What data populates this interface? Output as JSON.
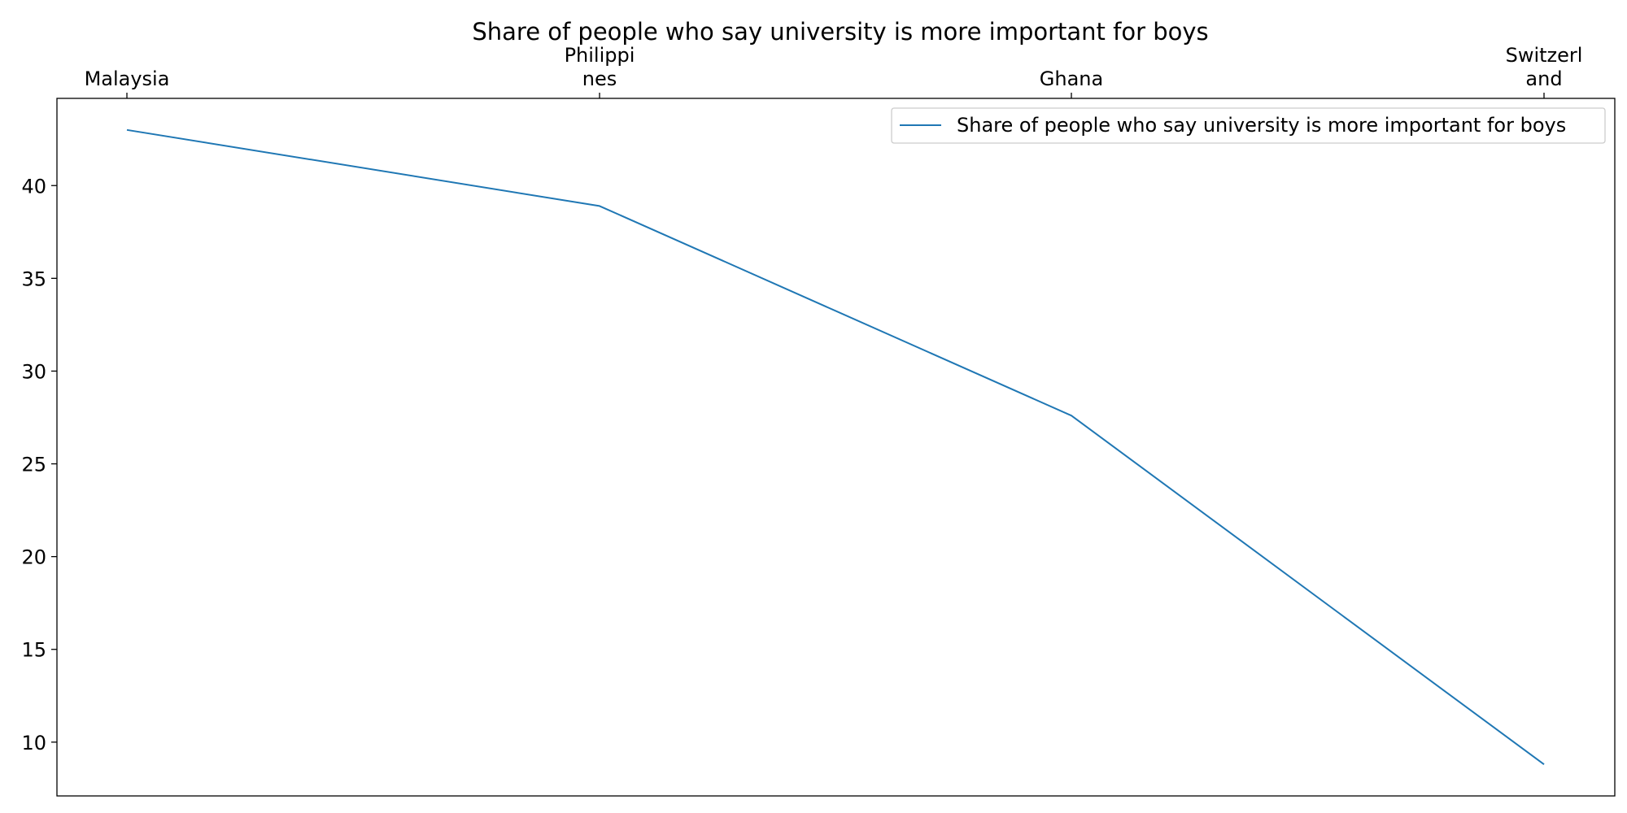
{
  "chart_data": {
    "type": "line",
    "title": "Share of people who say university is more important for boys",
    "categories": [
      "Malaysia",
      "Philippines",
      "Ghana",
      "Switzerland"
    ],
    "category_tick_labels": [
      [
        "Malaysia"
      ],
      [
        "Philippi",
        "nes"
      ],
      [
        "Ghana"
      ],
      [
        "Switzerl",
        "and"
      ]
    ],
    "x_axis_position": "top",
    "series": [
      {
        "name": "Share of people who say university is more important for boys",
        "values": [
          43.0,
          38.9,
          27.6,
          8.8
        ],
        "color": "#1f77b4"
      }
    ],
    "yticks": [
      10,
      15,
      20,
      25,
      30,
      35,
      40
    ],
    "ylim": [
      7.1,
      44.7
    ],
    "xlabel": "",
    "ylabel": "",
    "grid": false,
    "legend_position": "top-right"
  }
}
